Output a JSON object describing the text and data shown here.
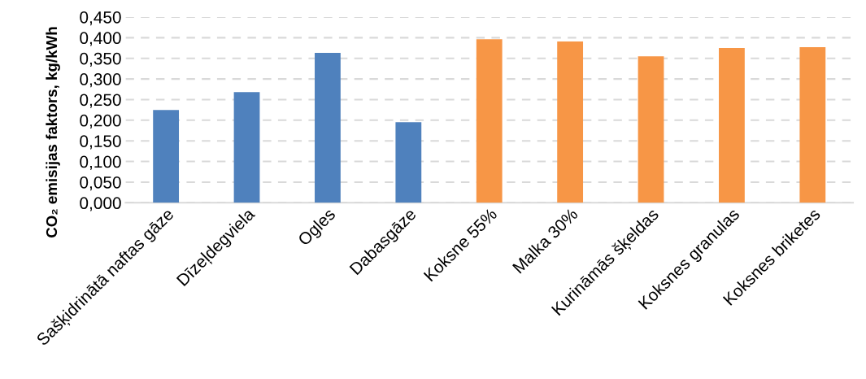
{
  "chart_data": {
    "type": "bar",
    "ylabel": "CO₂ emisijas faktors, kg/kWh",
    "categories": [
      "Sašķidrinātā naftas gāze",
      "Dīzeļdegviela",
      "Ogles",
      "Dabasgāze",
      "Koksne 55%",
      "Malka 30%",
      "Kurināmās šķeldas",
      "Koksnes granulas",
      "Koksnes briketes"
    ],
    "values": [
      0.225,
      0.268,
      0.363,
      0.195,
      0.396,
      0.391,
      0.355,
      0.375,
      0.377
    ],
    "colors": [
      "#4f81bd",
      "#4f81bd",
      "#4f81bd",
      "#4f81bd",
      "#f79646",
      "#f79646",
      "#f79646",
      "#f79646",
      "#f79646"
    ],
    "ylim": [
      0,
      0.45
    ],
    "yticks": [
      {
        "value": 0,
        "label": "0,000"
      },
      {
        "value": 0.05,
        "label": "0,050"
      },
      {
        "value": 0.1,
        "label": "0,100"
      },
      {
        "value": 0.15,
        "label": "0,150"
      },
      {
        "value": 0.2,
        "label": "0,200"
      },
      {
        "value": 0.25,
        "label": "0,250"
      },
      {
        "value": 0.3,
        "label": "0,300"
      },
      {
        "value": 0.35,
        "label": "0,350"
      },
      {
        "value": 0.4,
        "label": "0,400"
      },
      {
        "value": 0.45,
        "label": "0,450"
      }
    ],
    "grid": "y",
    "line_style": "dashed"
  }
}
